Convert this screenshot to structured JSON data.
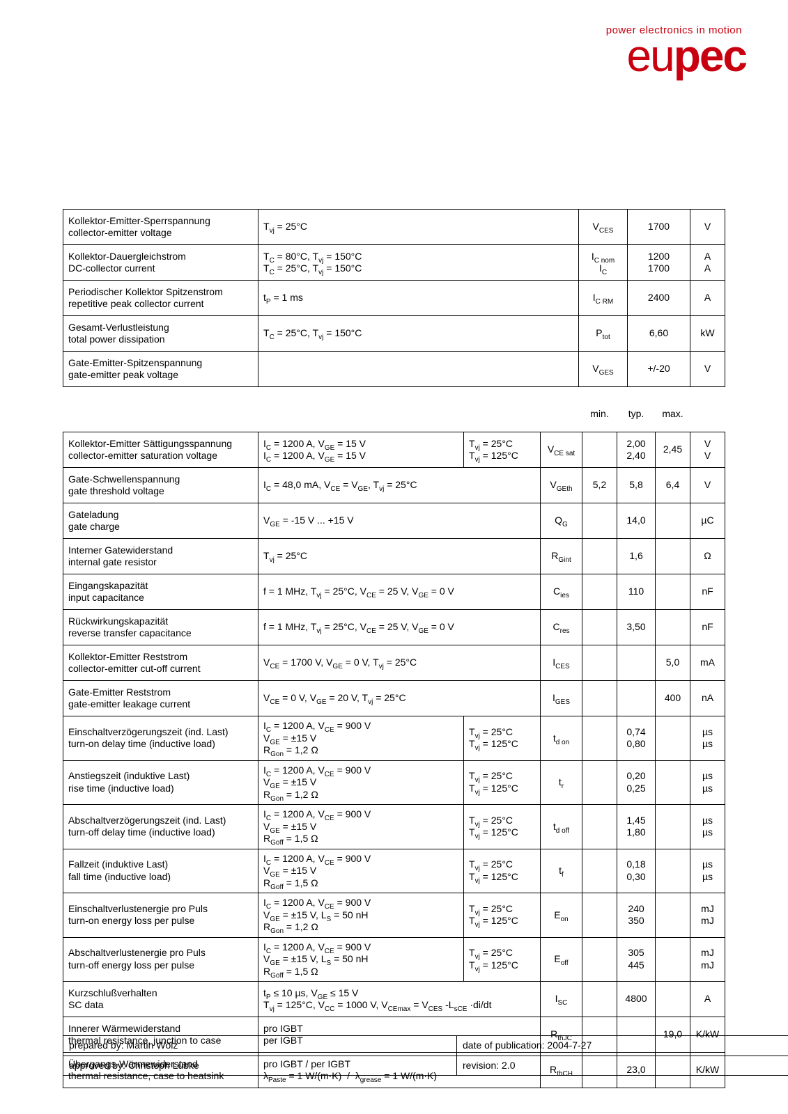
{
  "brand": {
    "tagline": "power electronics in motion",
    "wordmark_prefix": "eu",
    "wordmark_bold": "pec",
    "tagline_color": "#c8000f",
    "wordmark_color": "#c8000f"
  },
  "table1": {
    "rows": [
      {
        "label_de": "Kollektor-Emitter-Sperrspannung",
        "label_en": "collector-emitter voltage",
        "cond": "T<sub>vj</sub> = 25°C",
        "sym": "V<sub>CES</sub>",
        "val": "1700",
        "unit": "V"
      },
      {
        "label_de": "Kollektor-Dauergleichstrom",
        "label_en": "DC-collector current",
        "cond": "T<sub>C</sub> = 80°C, T<sub>vj</sub> = 150°C<br>T<sub>C</sub> = 25°C, T<sub>vj</sub> = 150°C",
        "sym": "I<sub>C nom</sub><br>I<sub>C</sub>",
        "val": "1200<br>1700",
        "unit": "A<br>A"
      },
      {
        "label_de": "Periodischer Kollektor Spitzenstrom",
        "label_en": "repetitive peak collector current",
        "cond": "t<sub>P</sub> = 1 ms",
        "sym": "I<sub>C RM</sub>",
        "val": "2400",
        "unit": "A"
      },
      {
        "label_de": "Gesamt-Verlustleistung",
        "label_en": "total power dissipation",
        "cond": "T<sub>C</sub> = 25°C, T<sub>vj</sub> = 150°C",
        "sym": "P<sub>tot</sub>",
        "val": "6,60",
        "unit": "kW"
      },
      {
        "label_de": "Gate-Emitter-Spitzenspannung",
        "label_en": "gate-emitter peak voltage",
        "cond": "",
        "sym": "V<sub>GES</sub>",
        "val": "+/-20",
        "unit": "V"
      }
    ]
  },
  "table2": {
    "headers": {
      "min": "min.",
      "typ": "typ.",
      "max": "max."
    },
    "rows": [
      {
        "label_de": "Kollektor-Emitter Sättigungsspannung",
        "label_en": "collector-emitter saturation voltage",
        "cond": "I<sub>C</sub> = 1200 A, V<sub>GE</sub> = 15 V<br>I<sub>C</sub> = 1200 A, V<sub>GE</sub> = 15 V",
        "cond2": "T<sub>vj</sub> = 25°C<br>T<sub>vj</sub> = 125°C",
        "sym": "V<sub>CE sat</sub>",
        "min": "",
        "typ": "2,00<br>2,40",
        "max": "2,45",
        "unit": "V<br>V"
      },
      {
        "label_de": "Gate-Schwellenspannung",
        "label_en": "gate threshold voltage",
        "cond": "I<sub>C</sub> = 48,0 mA, V<sub>CE</sub> = V<sub>GE</sub>, T<sub>vj</sub> = 25°C",
        "cond2": "",
        "sym": "V<sub>GEth</sub>",
        "min": "5,2",
        "typ": "5,8",
        "max": "6,4",
        "unit": "V"
      },
      {
        "label_de": "Gateladung",
        "label_en": "gate charge",
        "cond": "V<sub>GE</sub> = -15 V ... +15 V",
        "cond2": "",
        "sym": "Q<sub>G</sub>",
        "min": "",
        "typ": "14,0",
        "max": "",
        "unit": "µC"
      },
      {
        "label_de": "Interner Gatewiderstand",
        "label_en": "internal gate resistor",
        "cond": "T<sub>vj</sub> = 25°C",
        "cond2": "",
        "sym": "R<sub>Gint</sub>",
        "min": "",
        "typ": "1,6",
        "max": "",
        "unit": "Ω"
      },
      {
        "label_de": "Eingangskapazität",
        "label_en": "input capacitance",
        "cond": "f = 1 MHz, T<sub>vj</sub> = 25°C, V<sub>CE</sub> = 25 V, V<sub>GE</sub> = 0 V",
        "cond2": "",
        "sym": "C<sub>ies</sub>",
        "min": "",
        "typ": "110",
        "max": "",
        "unit": "nF"
      },
      {
        "label_de": "Rückwirkungskapazität",
        "label_en": "reverse transfer capacitance",
        "cond": "f = 1 MHz, T<sub>vj</sub> = 25°C, V<sub>CE</sub> = 25 V, V<sub>GE</sub> = 0 V",
        "cond2": "",
        "sym": "C<sub>res</sub>",
        "min": "",
        "typ": "3,50",
        "max": "",
        "unit": "nF"
      },
      {
        "label_de": "Kollektor-Emitter Reststrom",
        "label_en": "collector-emitter cut-off current",
        "cond": "V<sub>CE</sub> = 1700 V, V<sub>GE</sub> = 0 V, T<sub>vj</sub> = 25°C",
        "cond2": "",
        "sym": "I<sub>CES</sub>",
        "min": "",
        "typ": "",
        "max": "5,0",
        "unit": "mA"
      },
      {
        "label_de": "Gate-Emitter Reststrom",
        "label_en": "gate-emitter leakage current",
        "cond": "V<sub>CE</sub> = 0 V, V<sub>GE</sub> = 20 V, T<sub>vj</sub> = 25°C",
        "cond2": "",
        "sym": "I<sub>GES</sub>",
        "min": "",
        "typ": "",
        "max": "400",
        "unit": "nA"
      },
      {
        "label_de": "Einschaltverzögerungszeit (ind. Last)",
        "label_en": "turn-on delay time (inductive load)",
        "cond": "I<sub>C</sub> = 1200 A, V<sub>CE</sub> = 900 V<br>V<sub>GE</sub> = ±15 V<br>R<sub>Gon</sub> = 1,2 Ω",
        "cond2": "T<sub>vj</sub> = 25°C<br>T<sub>vj</sub> = 125°C",
        "sym": "t<sub>d on</sub>",
        "min": "",
        "typ": "0,74<br>0,80",
        "max": "",
        "unit": "µs<br>µs"
      },
      {
        "label_de": "Anstiegszeit (induktive Last)",
        "label_en": "rise time (inductive load)",
        "cond": "I<sub>C</sub> = 1200 A, V<sub>CE</sub> = 900 V<br>V<sub>GE</sub> = ±15 V<br>R<sub>Gon</sub> = 1,2 Ω",
        "cond2": "T<sub>vj</sub> = 25°C<br>T<sub>vj</sub> = 125°C",
        "sym": "t<sub>r</sub>",
        "min": "",
        "typ": "0,20<br>0,25",
        "max": "",
        "unit": "µs<br>µs"
      },
      {
        "label_de": "Abschaltverzögerungszeit (ind. Last)",
        "label_en": "turn-off delay time (inductive load)",
        "cond": "I<sub>C</sub> = 1200 A, V<sub>CE</sub> = 900 V<br>V<sub>GE</sub> = ±15 V<br>R<sub>Goff</sub> = 1,5 Ω",
        "cond2": "T<sub>vj</sub> = 25°C<br>T<sub>vj</sub> = 125°C",
        "sym": "t<sub>d off</sub>",
        "min": "",
        "typ": "1,45<br>1,80",
        "max": "",
        "unit": "µs<br>µs"
      },
      {
        "label_de": "Fallzeit (induktive Last)",
        "label_en": "fall time (inductive load)",
        "cond": "I<sub>C</sub> = 1200 A, V<sub>CE</sub> = 900 V<br>V<sub>GE</sub> = ±15 V<br>R<sub>Goff</sub> = 1,5 Ω",
        "cond2": "T<sub>vj</sub> = 25°C<br>T<sub>vj</sub> = 125°C",
        "sym": "t<sub>f</sub>",
        "min": "",
        "typ": "0,18<br>0,30",
        "max": "",
        "unit": "µs<br>µs"
      },
      {
        "label_de": "Einschaltverlustenergie pro Puls",
        "label_en": "turn-on energy loss per pulse",
        "cond": "I<sub>C</sub> = 1200 A, V<sub>CE</sub> = 900 V<br>V<sub>GE</sub> = ±15 V, L<sub>S</sub> = 50 nH<br>R<sub>Gon</sub> = 1,2 Ω",
        "cond2": "T<sub>vj</sub> = 25°C<br>T<sub>vj</sub> = 125°C",
        "sym": "E<sub>on</sub>",
        "min": "",
        "typ": "240<br>350",
        "max": "",
        "unit": "mJ<br>mJ"
      },
      {
        "label_de": "Abschaltverlustenergie pro Puls",
        "label_en": "turn-off energy loss per pulse",
        "cond": "I<sub>C</sub> = 1200 A, V<sub>CE</sub> = 900 V<br>V<sub>GE</sub> = ±15 V, L<sub>S</sub> = 50 nH<br>R<sub>Goff</sub> = 1,5 Ω",
        "cond2": "T<sub>vj</sub> = 25°C<br>T<sub>vj</sub> = 125°C",
        "sym": "E<sub>off</sub>",
        "min": "",
        "typ": "305<br>445",
        "max": "",
        "unit": "mJ<br>mJ"
      },
      {
        "label_de": "Kurzschlußverhalten",
        "label_en": "SC data",
        "cond": "t<sub>P</sub> ≤ 10 µs, V<sub>GE</sub> ≤ 15 V<br>T<sub>vj</sub> = 125°C, V<sub>CC</sub> = 1000 V, V<sub>CEmax</sub> = V<sub>CES</sub> -L<sub>sCE</sub> ·di/dt",
        "cond2": "",
        "sym": "I<sub>SC</sub>",
        "min": "",
        "typ": "4800",
        "max": "",
        "unit": "A",
        "span_cond": true
      },
      {
        "label_de": "Innerer Wärmewiderstand",
        "label_en": "thermal resistance, junction to case",
        "cond": "pro IGBT<br>per IGBT",
        "cond2": "",
        "sym": "R<sub>thJC</sub>",
        "min": "",
        "typ": "",
        "max": "19,0",
        "unit": "K/kW",
        "span_cond": true
      },
      {
        "label_de": "Übergangs-Wärmewiderstand",
        "label_en": "thermal resistance, case to heatsink",
        "cond": "pro IGBT / per IGBT<br>λ<sub>Paste</sub> = 1 W/(m·K)&nbsp;&nbsp;/&nbsp;&nbsp;λ<sub>grease</sub> = 1 W/(m·K)",
        "cond2": "",
        "sym": "R<sub>thCH</sub>",
        "min": "",
        "typ": "23,0",
        "max": "",
        "unit": "K/kW",
        "span_cond": true
      }
    ]
  },
  "meta": {
    "rows": [
      {
        "l": "prepared by: Martin Wölz",
        "r": "date of publication: 2004-7-27"
      },
      {
        "l": "approved by: Christoph Lübke",
        "r": "revision: 2.0"
      }
    ]
  }
}
